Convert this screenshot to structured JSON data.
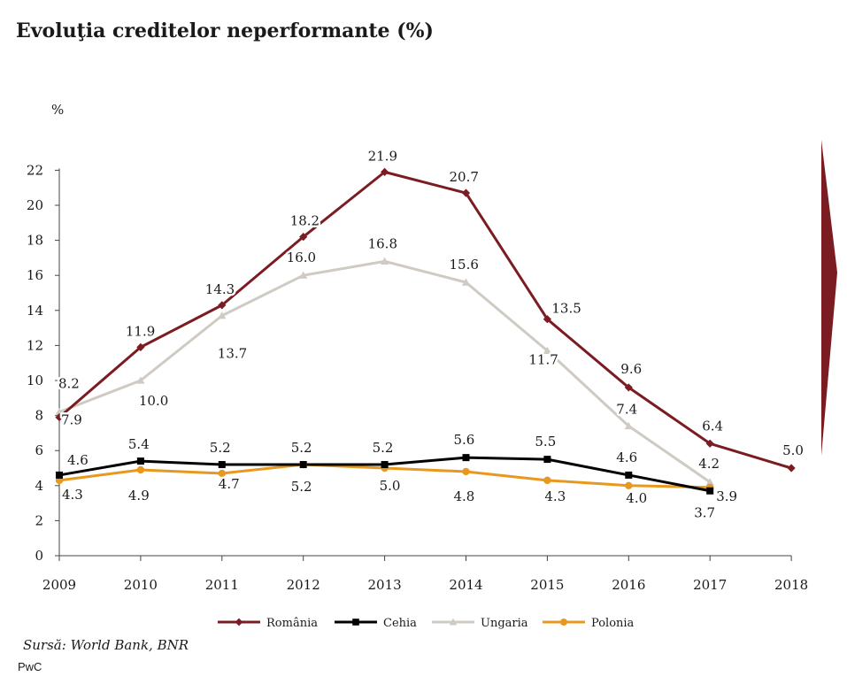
{
  "chart_data": {
    "type": "line",
    "title": "Evoluţia creditelor neperformante (%)",
    "ylabel": "%",
    "xlabel": "",
    "x": [
      "2009",
      "2010",
      "2011",
      "2012",
      "2013",
      "2014",
      "2015",
      "2016",
      "2017",
      "2018"
    ],
    "ylim": [
      0,
      22
    ],
    "yticks": [
      0,
      2,
      4,
      6,
      8,
      10,
      12,
      14,
      16,
      18,
      20,
      22
    ],
    "grid": false,
    "legend_position": "bottom",
    "series": [
      {
        "name": "România",
        "color": "#7b1c22",
        "marker": "diamond",
        "values": [
          7.9,
          11.9,
          14.3,
          18.2,
          21.9,
          20.7,
          13.5,
          9.6,
          6.4,
          5.0
        ],
        "labels": [
          "7.9",
          "11.9",
          "14.3",
          "18.2",
          "21.9",
          "20.7",
          "13.5",
          "9.6",
          "6.4",
          "5.0"
        ]
      },
      {
        "name": "Cehia",
        "color": "#000000",
        "marker": "square",
        "values": [
          4.6,
          5.4,
          5.2,
          5.2,
          5.2,
          5.6,
          5.5,
          4.6,
          3.7,
          null
        ],
        "labels": [
          "4.6",
          "5.4",
          "5.2",
          "5.2",
          "5.2",
          "5.6",
          "5.5",
          "4.6",
          "3.7",
          null
        ]
      },
      {
        "name": "Ungaria",
        "color": "#cfcbc3",
        "marker": "triangle",
        "values": [
          8.2,
          10.0,
          13.7,
          16.0,
          16.8,
          15.6,
          11.7,
          7.4,
          4.2,
          null
        ],
        "labels": [
          "8.2",
          "10.0",
          "13.7",
          "16.0",
          "16.8",
          "15.6",
          "11.7",
          "7.4",
          "4.2",
          null
        ]
      },
      {
        "name": "Polonia",
        "color": "#e8981e",
        "marker": "circle",
        "values": [
          4.3,
          4.9,
          4.7,
          5.2,
          5.0,
          4.8,
          4.3,
          4.0,
          3.9,
          null
        ],
        "labels": [
          "4.3",
          "4.9",
          "4.7",
          "5.2",
          "5.0",
          "4.8",
          "4.3",
          "4.0",
          "3.9",
          null
        ]
      }
    ]
  },
  "source": "Sursă: World Bank, BNR",
  "brand": "PwC",
  "decoration": {
    "arrow_color": "#7b1c22"
  }
}
